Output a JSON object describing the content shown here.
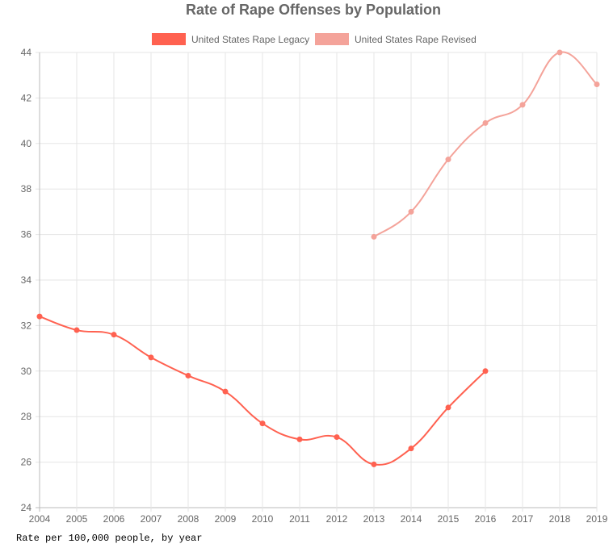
{
  "chart_data": {
    "type": "line",
    "title": "Rate of Rape Offenses by Population",
    "xlabel": "",
    "ylabel": "",
    "x": [
      2004,
      2005,
      2006,
      2007,
      2008,
      2009,
      2010,
      2011,
      2012,
      2013,
      2014,
      2015,
      2016,
      2017,
      2018,
      2019
    ],
    "ylim": [
      24,
      44
    ],
    "yticks": [
      24,
      26,
      28,
      30,
      32,
      34,
      36,
      38,
      40,
      42,
      44
    ],
    "grid": true,
    "legend_placement": "top",
    "series": [
      {
        "name": "United States Rape Legacy",
        "color": "#ff6150",
        "x": [
          2004,
          2005,
          2006,
          2007,
          2008,
          2009,
          2010,
          2011,
          2012,
          2013,
          2014,
          2015,
          2016
        ],
        "values": [
          32.4,
          31.8,
          31.6,
          30.6,
          29.8,
          29.1,
          27.7,
          27.0,
          27.1,
          25.9,
          26.6,
          28.4,
          30.0
        ]
      },
      {
        "name": "United States Rape Revised",
        "color": "#f4a39a",
        "x": [
          2013,
          2014,
          2015,
          2016,
          2017,
          2018,
          2019
        ],
        "values": [
          35.9,
          37.0,
          39.3,
          40.9,
          41.7,
          44.0,
          42.6
        ]
      }
    ]
  },
  "caption": "Rate per 100,000 people, by year"
}
